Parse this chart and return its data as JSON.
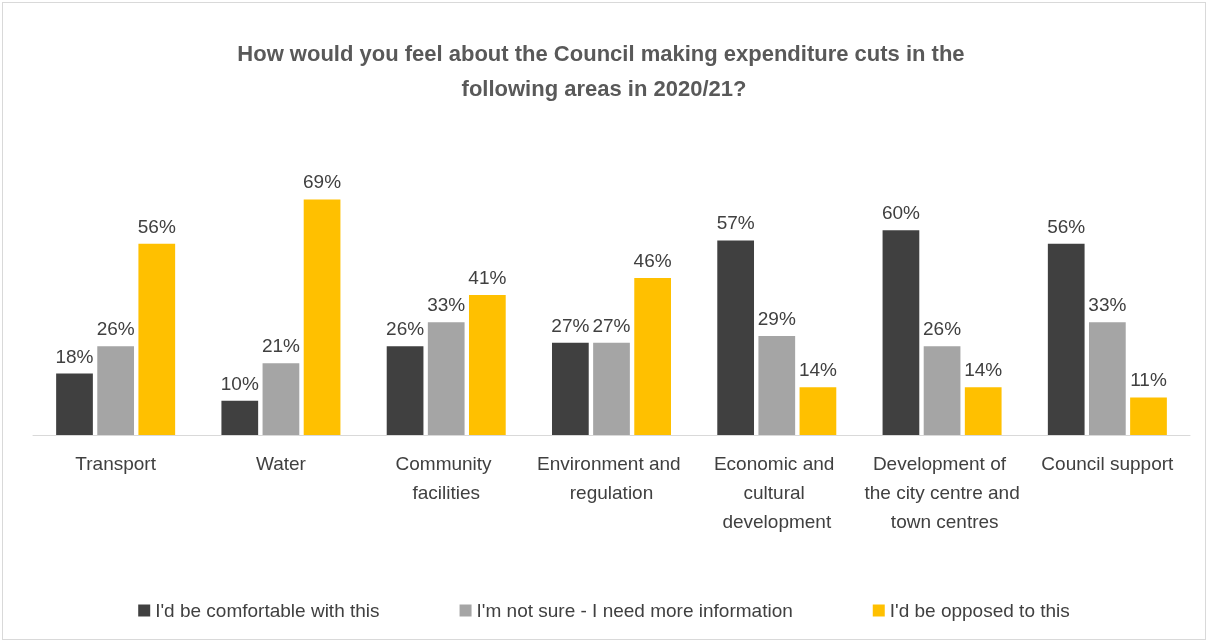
{
  "chart_data": {
    "type": "bar",
    "title": "How would you feel about the Council making expenditure cuts in the following areas in 2020/21?",
    "categories": [
      "Transport",
      "Water",
      "Community facilities",
      "Environment and regulation",
      "Economic and cultural development",
      "Development of the city centre and town centres",
      "Council support"
    ],
    "series": [
      {
        "name": "I'd be comfortable with this",
        "color": "#404040",
        "values": [
          18,
          10,
          26,
          27,
          57,
          60,
          56
        ],
        "value_labels": [
          "18%",
          "10%",
          "26%",
          "27%",
          "57%",
          "60%",
          "56%"
        ]
      },
      {
        "name": "I'm not sure - I need more information",
        "color": "#a5a5a5",
        "values": [
          26,
          21,
          33,
          27,
          29,
          26,
          33
        ],
        "value_labels": [
          "26%",
          "21%",
          "33%",
          "27%",
          "29%",
          "26%",
          "33%"
        ]
      },
      {
        "name": "I'd be opposed to this",
        "color": "#ffc000",
        "values": [
          56,
          69,
          41,
          46,
          14,
          14,
          11
        ],
        "value_labels": [
          "56%",
          "69%",
          "41%",
          "46%",
          "14%",
          "14%",
          "11%"
        ]
      }
    ],
    "legend": "bottom"
  }
}
